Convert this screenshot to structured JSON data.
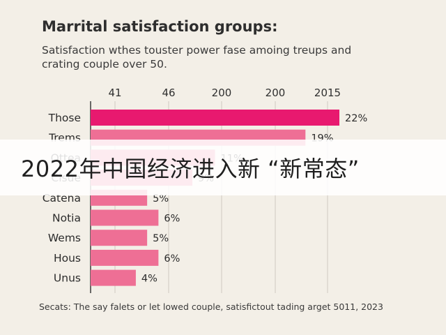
{
  "title": "Marrital satisfaction groups:",
  "subtitle": "Satisfaction wthes touster power fase amoing treups and crating couple over 50.",
  "footnote": "Secats: The say falets or let lowed couple, satisfictout tading arget 5011, 2023",
  "banner_text": "2022年中国经济进入新 “新常态”",
  "chart_data": {
    "type": "bar",
    "orientation": "horizontal",
    "top_axis_labels": [
      "41",
      "46",
      "200",
      "200",
      "2015"
    ],
    "categories": [
      "Those",
      "Trems",
      "Ottea",
      "Cisue",
      "Catena",
      "Notia",
      "Wems",
      "Hous",
      "Unus"
    ],
    "values": [
      22,
      19,
      11,
      9,
      5,
      6,
      5,
      6,
      4
    ],
    "value_labels": [
      "22%",
      "19%",
      "11%",
      "9%",
      "5%",
      "6%",
      "5%",
      "6%",
      "4%"
    ],
    "grid": true,
    "colors": {
      "highlight": "#e8196f",
      "bar": "#ee6f95",
      "grid": "#cfcac2",
      "axis": "#3a3a3a"
    }
  }
}
